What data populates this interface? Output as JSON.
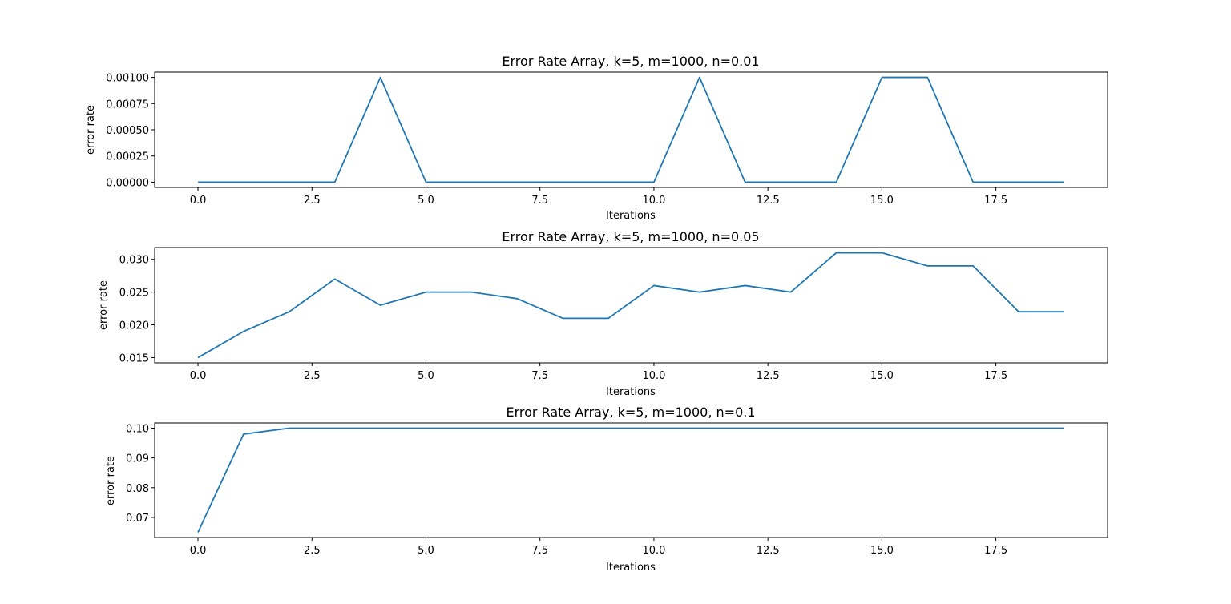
{
  "chart_data": [
    {
      "type": "line",
      "title": "Error Rate Array, k=5, m=1000, n=0.01",
      "xlabel": "Iterations",
      "ylabel": "error rate",
      "xlim": [
        -0.95,
        19.95
      ],
      "ylim": [
        -5e-05,
        0.00105
      ],
      "xticks": [
        0.0,
        2.5,
        5.0,
        7.5,
        10.0,
        12.5,
        15.0,
        17.5
      ],
      "xtick_labels": [
        "0.0",
        "2.5",
        "5.0",
        "7.5",
        "10.0",
        "12.5",
        "15.0",
        "17.5"
      ],
      "yticks": [
        0,
        0.00025,
        0.0005,
        0.00075,
        0.001
      ],
      "ytick_labels": [
        "0.00000",
        "0.00025",
        "0.00050",
        "0.00075",
        "0.00100"
      ],
      "grid": false,
      "series": [
        {
          "color": "#1f77b4",
          "x": [
            0,
            1,
            2,
            3,
            4,
            5,
            6,
            7,
            8,
            9,
            10,
            11,
            12,
            13,
            14,
            15,
            16,
            17,
            18,
            19
          ],
          "values": [
            0,
            0,
            0,
            0,
            0.001,
            0,
            0,
            0,
            0,
            0,
            0,
            0.001,
            0,
            0,
            0,
            0.001,
            0.001,
            0,
            0,
            0
          ]
        }
      ]
    },
    {
      "type": "line",
      "title": "Error Rate Array, k=5, m=1000, n=0.05",
      "xlabel": "Iterations",
      "ylabel": "error rate",
      "xlim": [
        -0.95,
        19.95
      ],
      "ylim": [
        0.0142,
        0.0318
      ],
      "xticks": [
        0.0,
        2.5,
        5.0,
        7.5,
        10.0,
        12.5,
        15.0,
        17.5
      ],
      "xtick_labels": [
        "0.0",
        "2.5",
        "5.0",
        "7.5",
        "10.0",
        "12.5",
        "15.0",
        "17.5"
      ],
      "yticks": [
        0.015,
        0.02,
        0.025,
        0.03
      ],
      "ytick_labels": [
        "0.015",
        "0.020",
        "0.025",
        "0.030"
      ],
      "grid": false,
      "series": [
        {
          "color": "#1f77b4",
          "x": [
            0,
            1,
            2,
            3,
            4,
            5,
            6,
            7,
            8,
            9,
            10,
            11,
            12,
            13,
            14,
            15,
            16,
            17,
            18,
            19
          ],
          "values": [
            0.015,
            0.019,
            0.022,
            0.027,
            0.023,
            0.025,
            0.025,
            0.024,
            0.021,
            0.021,
            0.026,
            0.025,
            0.026,
            0.025,
            0.031,
            0.031,
            0.029,
            0.029,
            0.022,
            0.022
          ]
        }
      ]
    },
    {
      "type": "line",
      "title": "Error Rate Array, k=5, m=1000, n=0.1",
      "xlabel": "Iterations",
      "ylabel": "error rate",
      "xlim": [
        -0.95,
        19.95
      ],
      "ylim": [
        0.06325,
        0.10175
      ],
      "xticks": [
        0.0,
        2.5,
        5.0,
        7.5,
        10.0,
        12.5,
        15.0,
        17.5
      ],
      "xtick_labels": [
        "0.0",
        "2.5",
        "5.0",
        "7.5",
        "10.0",
        "12.5",
        "15.0",
        "17.5"
      ],
      "yticks": [
        0.07,
        0.08,
        0.09,
        0.1
      ],
      "ytick_labels": [
        "0.07",
        "0.08",
        "0.09",
        "0.10"
      ],
      "grid": false,
      "series": [
        {
          "color": "#1f77b4",
          "x": [
            0,
            1,
            2,
            3,
            4,
            5,
            6,
            7,
            8,
            9,
            10,
            11,
            12,
            13,
            14,
            15,
            16,
            17,
            18,
            19
          ],
          "values": [
            0.065,
            0.098,
            0.1,
            0.1,
            0.1,
            0.1,
            0.1,
            0.1,
            0.1,
            0.1,
            0.1,
            0.1,
            0.1,
            0.1,
            0.1,
            0.1,
            0.1,
            0.1,
            0.1,
            0.1
          ]
        }
      ]
    }
  ]
}
